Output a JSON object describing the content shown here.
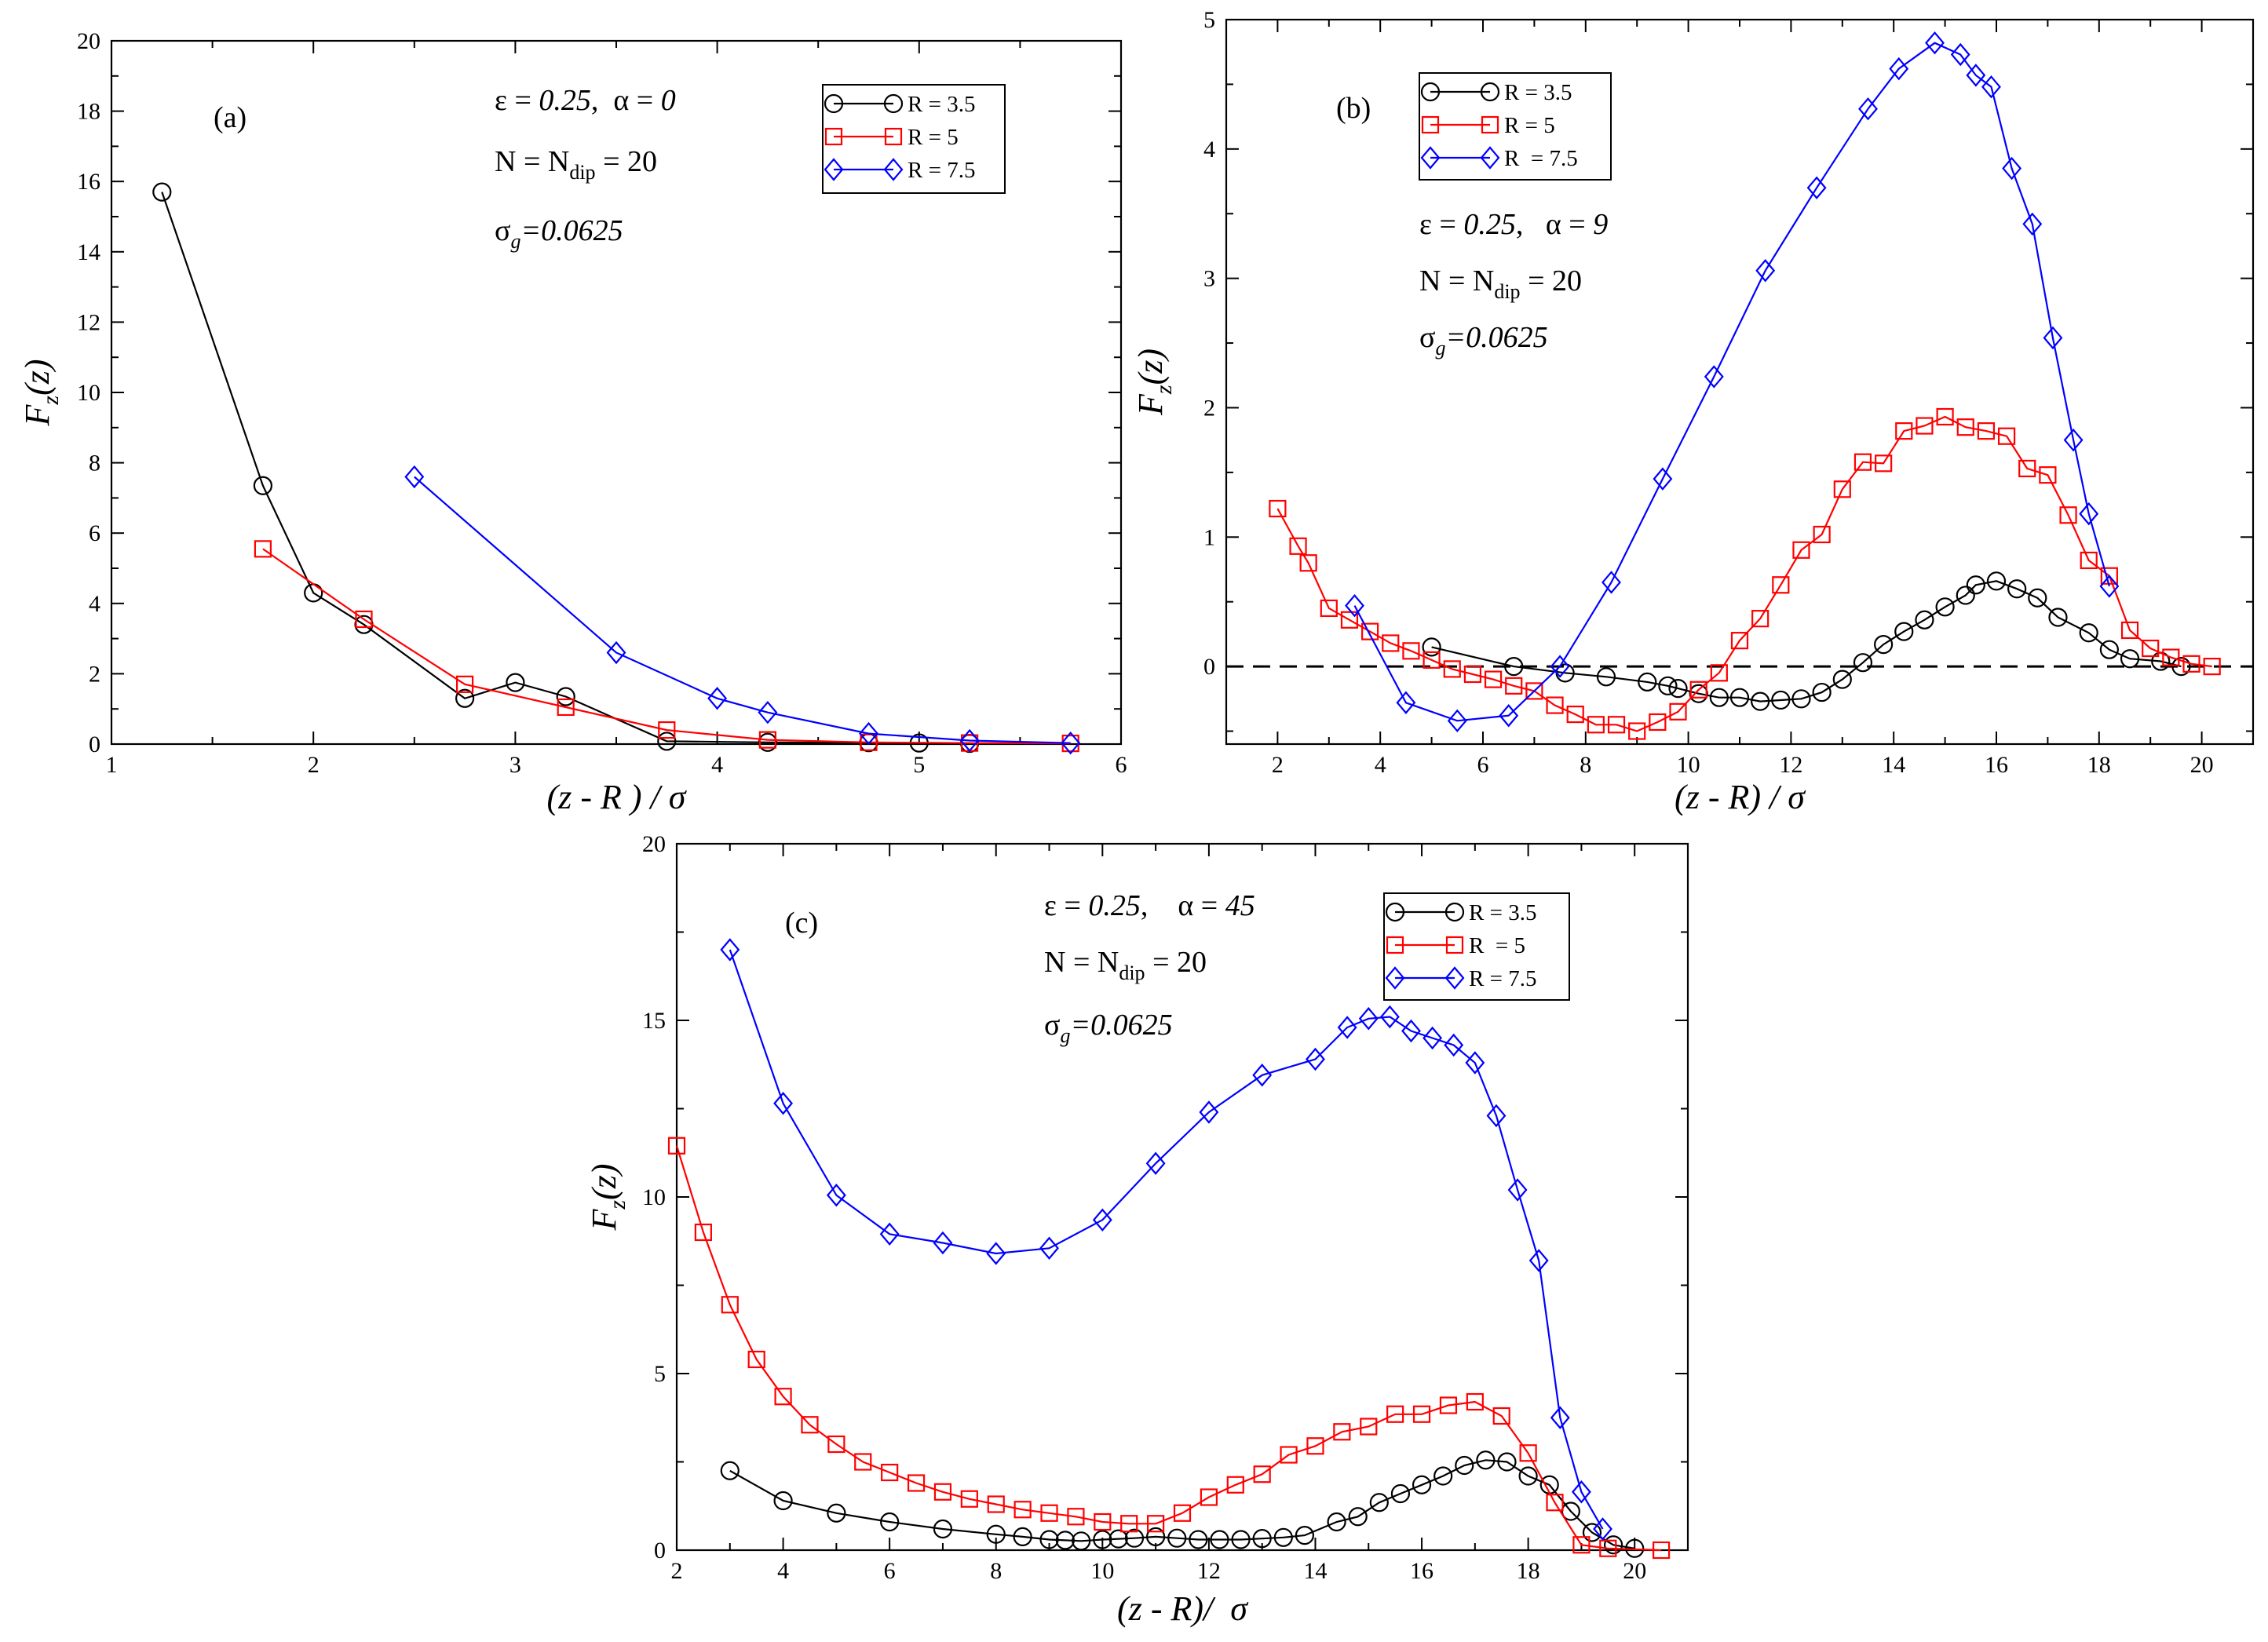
{
  "chart_data": [
    {
      "type": "line",
      "panel": "(a)",
      "xlabel": "(z - R ) / σ",
      "ylabel": "F_z(z)",
      "xlim": [
        1,
        6
      ],
      "ylim": [
        0,
        20
      ],
      "xticks": [
        1,
        2,
        3,
        4,
        5,
        6
      ],
      "yticks": [
        0,
        2,
        4,
        6,
        8,
        10,
        12,
        14,
        16,
        18,
        20
      ],
      "annotations": [
        "ε = 0.25,  α = 0",
        "N = N_dip = 20",
        "σ_g=0.0625"
      ],
      "series": [
        {
          "name": "R = 3.5",
          "color": "#000000",
          "marker": "circle",
          "x": [
            1.25,
            1.75,
            2.0,
            2.25,
            2.75,
            3.0,
            3.25,
            3.75,
            4.25,
            4.75,
            5.0,
            5.25
          ],
          "y": [
            15.7,
            7.35,
            4.3,
            3.4,
            1.3,
            1.75,
            1.35,
            0.08,
            0.05,
            0.04,
            0.03,
            0.02
          ]
        },
        {
          "name": "R = 5",
          "color": "#ff0000",
          "marker": "square",
          "x": [
            1.75,
            2.25,
            2.75,
            3.25,
            3.75,
            4.25,
            4.75,
            5.25,
            5.75
          ],
          "y": [
            5.55,
            3.55,
            1.7,
            1.05,
            0.4,
            0.12,
            0.05,
            0.03,
            0.02
          ]
        },
        {
          "name": "R = 7.5",
          "color": "#0000ff",
          "marker": "diamond",
          "x": [
            2.5,
            3.5,
            4.0,
            4.25,
            4.75,
            5.25,
            5.75
          ],
          "y": [
            7.6,
            2.6,
            1.3,
            0.9,
            0.3,
            0.1,
            0.03
          ]
        }
      ]
    },
    {
      "type": "line",
      "panel": "(b)",
      "xlabel": "(z - R) / σ",
      "ylabel": "F_z(z)",
      "xlim": [
        1,
        21
      ],
      "ylim": [
        -0.6,
        5
      ],
      "xticks": [
        2,
        4,
        6,
        8,
        10,
        12,
        14,
        16,
        18,
        20
      ],
      "yticks": [
        0,
        1,
        2,
        3,
        4,
        5
      ],
      "zero_line": true,
      "annotations": [
        "ε = 0.25,   α = 9",
        "N = N_dip = 20",
        "σ_g=0.0625"
      ],
      "series": [
        {
          "name": "R = 3.5",
          "color": "#000000",
          "marker": "circle",
          "x": [
            5.0,
            6.6,
            7.6,
            8.4,
            9.2,
            9.6,
            9.8,
            10.2,
            10.6,
            11.0,
            11.4,
            11.8,
            12.2,
            12.6,
            13.0,
            13.4,
            13.8,
            14.2,
            14.6,
            15.0,
            15.4,
            15.6,
            16.0,
            16.4,
            16.8,
            17.2,
            17.8,
            18.2,
            18.6,
            19.2,
            19.6
          ],
          "y": [
            0.15,
            0.0,
            -0.05,
            -0.08,
            -0.12,
            -0.15,
            -0.17,
            -0.21,
            -0.24,
            -0.24,
            -0.27,
            -0.26,
            -0.25,
            -0.2,
            -0.1,
            0.03,
            0.17,
            0.27,
            0.36,
            0.46,
            0.55,
            0.63,
            0.66,
            0.6,
            0.53,
            0.38,
            0.26,
            0.13,
            0.06,
            0.04,
            0.0
          ]
        },
        {
          "name": "R = 5",
          "color": "#ff0000",
          "marker": "square",
          "x": [
            2.0,
            2.4,
            2.6,
            3.0,
            3.4,
            3.8,
            4.2,
            4.6,
            5.0,
            5.4,
            5.8,
            6.2,
            6.6,
            7.0,
            7.4,
            7.8,
            8.2,
            8.6,
            9.0,
            9.4,
            9.8,
            10.2,
            10.6,
            11.0,
            11.4,
            11.8,
            12.2,
            12.6,
            13.0,
            13.4,
            13.8,
            14.2,
            14.6,
            15.0,
            15.4,
            15.8,
            16.2,
            16.6,
            17.0,
            17.4,
            17.8,
            18.2,
            18.6,
            19.0,
            19.4,
            19.8,
            20.2
          ],
          "y": [
            1.22,
            0.93,
            0.8,
            0.45,
            0.36,
            0.27,
            0.18,
            0.12,
            0.05,
            -0.02,
            -0.06,
            -0.1,
            -0.15,
            -0.19,
            -0.3,
            -0.37,
            -0.45,
            -0.45,
            -0.5,
            -0.43,
            -0.35,
            -0.18,
            -0.05,
            0.2,
            0.37,
            0.63,
            0.9,
            1.02,
            1.37,
            1.58,
            1.57,
            1.82,
            1.86,
            1.93,
            1.85,
            1.82,
            1.78,
            1.53,
            1.48,
            1.17,
            0.82,
            0.7,
            0.28,
            0.14,
            0.07,
            0.02,
            0.0
          ]
        },
        {
          "name": "R  = 7.5",
          "color": "#0000ff",
          "marker": "diamond",
          "x": [
            3.5,
            4.5,
            5.5,
            6.5,
            7.5,
            8.5,
            9.5,
            10.5,
            11.5,
            12.5,
            13.5,
            14.1,
            14.8,
            15.3,
            15.6,
            15.9,
            16.3,
            16.7,
            17.1,
            17.5,
            17.8,
            18.2
          ],
          "y": [
            0.47,
            -0.28,
            -0.42,
            -0.38,
            0.0,
            0.65,
            1.45,
            2.24,
            3.06,
            3.7,
            4.31,
            4.62,
            4.82,
            4.73,
            4.57,
            4.48,
            3.85,
            3.42,
            2.54,
            1.75,
            1.18,
            0.62
          ]
        }
      ]
    },
    {
      "type": "line",
      "panel": "(c)",
      "xlabel": "(z - R)/  σ",
      "ylabel": "F_z(z)",
      "xlim": [
        2,
        21
      ],
      "ylim": [
        0,
        20
      ],
      "xticks": [
        2,
        4,
        6,
        8,
        10,
        12,
        14,
        16,
        18,
        20
      ],
      "yticks": [
        0,
        5,
        10,
        15,
        20
      ],
      "annotations": [
        "ε = 0.25,    α = 45",
        "N = N_dip = 20",
        "σ_g=0.0625"
      ],
      "series": [
        {
          "name": "R = 3.5",
          "color": "#000000",
          "marker": "circle",
          "x": [
            3.0,
            4.0,
            5.0,
            6.0,
            7.0,
            8.0,
            8.5,
            9.0,
            9.3,
            9.6,
            10.0,
            10.3,
            10.6,
            11.0,
            11.4,
            11.8,
            12.2,
            12.6,
            13.0,
            13.4,
            13.8,
            14.4,
            14.8,
            15.2,
            15.6,
            16.0,
            16.4,
            16.8,
            17.2,
            17.6,
            18.0,
            18.4,
            18.8,
            19.2,
            19.6,
            20.0
          ],
          "y": [
            2.25,
            1.4,
            1.05,
            0.8,
            0.6,
            0.45,
            0.38,
            0.3,
            0.28,
            0.26,
            0.3,
            0.32,
            0.34,
            0.38,
            0.34,
            0.3,
            0.3,
            0.3,
            0.33,
            0.36,
            0.42,
            0.8,
            0.95,
            1.35,
            1.6,
            1.85,
            2.1,
            2.4,
            2.55,
            2.5,
            2.1,
            1.85,
            1.1,
            0.5,
            0.15,
            0.05
          ]
        },
        {
          "name": "R  = 5",
          "color": "#ff0000",
          "marker": "square",
          "x": [
            2.0,
            2.5,
            3.0,
            3.5,
            4.0,
            4.5,
            5.0,
            5.5,
            6.0,
            6.5,
            7.0,
            7.5,
            8.0,
            8.5,
            9.0,
            9.5,
            10.0,
            10.5,
            11.0,
            11.5,
            12.0,
            12.5,
            13.0,
            13.5,
            14.0,
            14.5,
            15.0,
            15.5,
            16.0,
            16.5,
            17.0,
            17.5,
            18.0,
            18.5,
            19.0,
            19.5,
            20.5
          ],
          "y": [
            11.45,
            9.0,
            6.95,
            5.4,
            4.35,
            3.55,
            3.0,
            2.5,
            2.2,
            1.9,
            1.65,
            1.45,
            1.3,
            1.15,
            1.05,
            0.95,
            0.8,
            0.75,
            0.75,
            1.05,
            1.5,
            1.85,
            2.15,
            2.7,
            2.95,
            3.35,
            3.5,
            3.85,
            3.85,
            4.1,
            4.2,
            3.8,
            2.75,
            1.35,
            0.15,
            0.05,
            0.0
          ]
        },
        {
          "name": "R = 7.5",
          "color": "#0000ff",
          "marker": "diamond",
          "x": [
            3.0,
            4.0,
            5.0,
            6.0,
            7.0,
            8.0,
            9.0,
            10.0,
            11.0,
            12.0,
            13.0,
            14.0,
            14.6,
            15.0,
            15.4,
            15.8,
            16.2,
            16.6,
            17.0,
            17.4,
            17.8,
            18.2,
            18.6,
            19.0,
            19.4
          ],
          "y": [
            17.0,
            12.65,
            10.05,
            8.95,
            8.7,
            8.4,
            8.55,
            9.35,
            10.95,
            12.4,
            13.45,
            13.9,
            14.8,
            15.05,
            15.1,
            14.7,
            14.5,
            14.3,
            13.8,
            12.3,
            10.2,
            8.2,
            3.75,
            1.65,
            0.6
          ]
        }
      ]
    }
  ]
}
